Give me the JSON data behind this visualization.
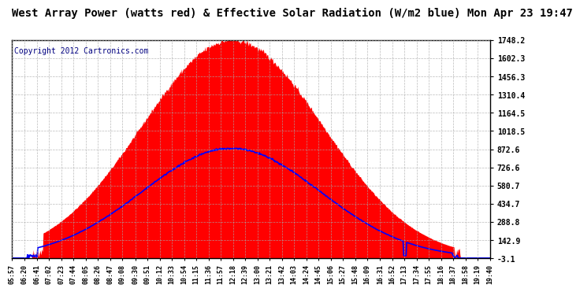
{
  "title": "West Array Power (watts red) & Effective Solar Radiation (W/m2 blue) Mon Apr 23 19:47",
  "copyright": "Copyright 2012 Cartronics.com",
  "background_color": "#ffffff",
  "plot_background": "#ffffff",
  "yticks": [
    -3.1,
    142.9,
    288.8,
    434.7,
    580.7,
    726.6,
    872.6,
    1018.5,
    1164.5,
    1310.4,
    1456.3,
    1602.3,
    1748.2
  ],
  "ymin": -3.1,
  "ymax": 1748.2,
  "x_labels": [
    "05:57",
    "06:20",
    "06:41",
    "07:02",
    "07:23",
    "07:44",
    "08:05",
    "08:26",
    "08:47",
    "09:08",
    "09:30",
    "09:51",
    "10:12",
    "10:33",
    "10:54",
    "11:15",
    "11:36",
    "11:57",
    "12:18",
    "12:39",
    "13:00",
    "13:21",
    "13:42",
    "14:03",
    "14:24",
    "14:45",
    "15:06",
    "15:27",
    "15:48",
    "16:09",
    "16:31",
    "16:52",
    "17:13",
    "17:34",
    "17:55",
    "18:16",
    "18:37",
    "18:58",
    "19:19",
    "19:40"
  ],
  "red_fill_color": "#ff0000",
  "blue_line_color": "#0000ff",
  "grid_color": "#aaaaaa",
  "title_color": "#000000",
  "title_fontsize": 10,
  "copyright_fontsize": 7,
  "tick_label_color": "#000000",
  "tick_label_fontsize": 7,
  "xtick_label_fontsize": 6
}
